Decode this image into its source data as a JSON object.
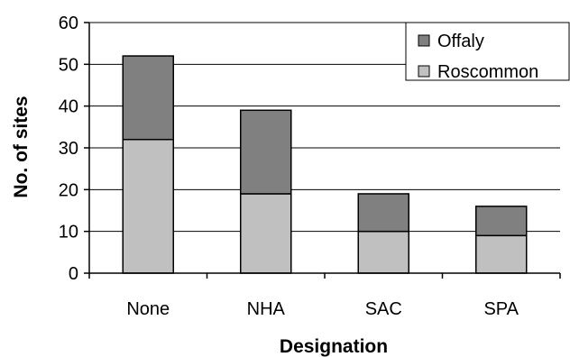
{
  "chart_data": {
    "type": "bar",
    "stacked": true,
    "categories": [
      "None",
      "NHA",
      "SAC",
      "SPA"
    ],
    "series": [
      {
        "name": "Roscommon",
        "values": [
          32,
          19,
          10,
          9
        ],
        "color": "#c0c0c0"
      },
      {
        "name": "Offaly",
        "values": [
          20,
          20,
          9,
          7
        ],
        "color": "#808080"
      }
    ],
    "title": "",
    "xlabel": "Designation",
    "ylabel": "No. of sites",
    "ylim": [
      0,
      60
    ],
    "yticks": [
      0,
      10,
      20,
      30,
      40,
      50,
      60
    ],
    "grid": true,
    "legend_position": "top-right",
    "legend_order": [
      "Offaly",
      "Roscommon"
    ]
  }
}
